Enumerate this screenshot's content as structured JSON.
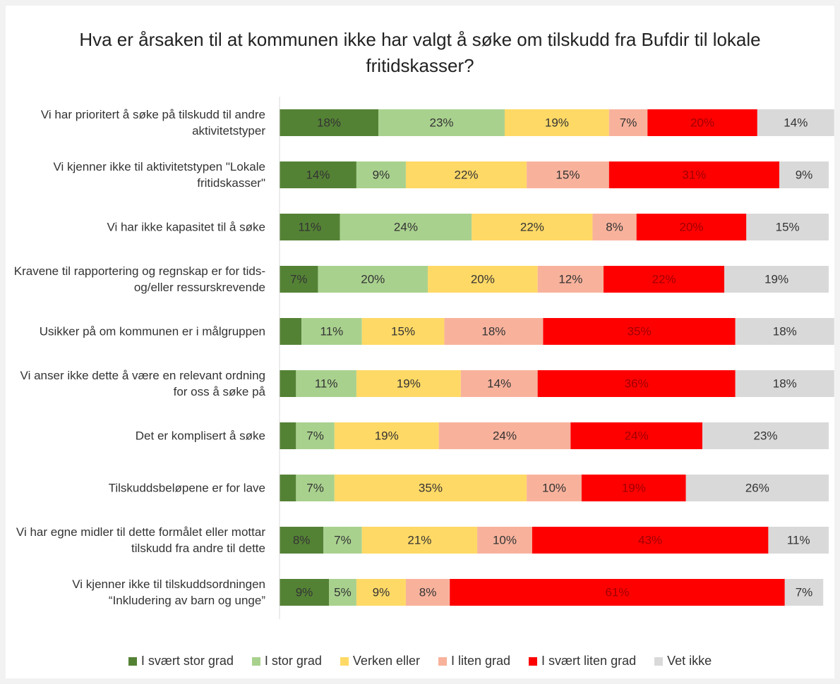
{
  "chart_data": {
    "type": "stacked-bar-horizontal",
    "title": "Hva er årsaken til at kommunen ikke har valgt å søke om tilskudd fra Bufdir til lokale fritidskasser?",
    "categories": [
      "Vi har prioritert å søke på tilskudd til andre aktivitetstyper",
      "Vi kjenner ikke til aktivitetstypen \"Lokale fritidskasser\"",
      "Vi har ikke kapasitet til å søke",
      "Kravene til rapportering og regnskap er for tids- og/eller ressurskrevende",
      "Usikker på om kommunen er i målgruppen",
      "Vi anser ikke dette å være en relevant ordning for oss å søke på",
      "Det er komplisert å søke",
      "Tilskuddsbeløpene er for lave",
      "Vi har egne midler til dette formålet eller mottar tilskudd fra andre til dette",
      "Vi kjenner ikke til tilskuddsordningen “Inkludering av barn og unge”"
    ],
    "xlim": [
      0,
      100
    ],
    "legend": "bottom",
    "series": [
      {
        "name": "I svært stor grad",
        "color": "#548235",
        "values": [
          18,
          14,
          11,
          7,
          4,
          3,
          3,
          3,
          8,
          9
        ],
        "value_labels": [
          "18%",
          "14%",
          "11%",
          "7%",
          null,
          null,
          null,
          null,
          "8%",
          "9%"
        ]
      },
      {
        "name": "I stor grad",
        "color": "#a9d18e",
        "values": [
          23,
          9,
          24,
          20,
          11,
          11,
          7,
          7,
          7,
          5
        ],
        "value_labels": [
          "23%",
          "9%",
          "24%",
          "20%",
          "11%",
          "11%",
          "7%",
          "7%",
          "7%",
          "5%"
        ]
      },
      {
        "name": "Verken eller",
        "color": "#ffd966",
        "values": [
          19,
          22,
          22,
          20,
          15,
          19,
          19,
          35,
          21,
          9
        ],
        "value_labels": [
          "19%",
          "22%",
          "22%",
          "20%",
          "15%",
          "19%",
          "19%",
          "35%",
          "21%",
          "9%"
        ]
      },
      {
        "name": "I liten grad",
        "color": "#f8b29c",
        "values": [
          7,
          15,
          8,
          12,
          18,
          14,
          24,
          10,
          10,
          8
        ],
        "value_labels": [
          "7%",
          "15%",
          "8%",
          "12%",
          "18%",
          "14%",
          "24%",
          "10%",
          "10%",
          "8%"
        ]
      },
      {
        "name": "I svært liten grad",
        "color": "#ff0000",
        "values": [
          20,
          31,
          20,
          22,
          35,
          36,
          24,
          19,
          43,
          61
        ],
        "value_labels": [
          "20%",
          "31%",
          "20%",
          "22%",
          "35%",
          "36%",
          "24%",
          "19%",
          "43%",
          "61%"
        ]
      },
      {
        "name": "Vet ikke",
        "color": "#d9d9d9",
        "values": [
          14,
          9,
          15,
          19,
          18,
          18,
          23,
          26,
          11,
          7
        ],
        "value_labels": [
          "14%",
          "9%",
          "15%",
          "19%",
          "18%",
          "18%",
          "23%",
          "26%",
          "11%",
          "7%"
        ]
      }
    ]
  }
}
